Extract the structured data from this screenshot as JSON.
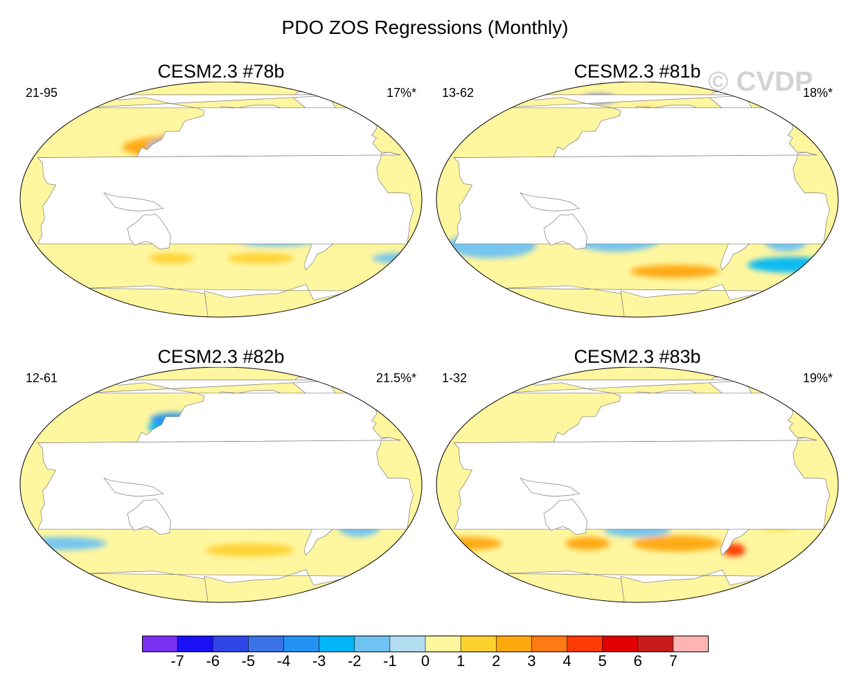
{
  "title": "PDO ZOS Regressions (Monthly)",
  "watermark": "© CVDP",
  "panels": [
    {
      "title": "CESM2.3 #78b",
      "years": "21-95",
      "percent": "17%*",
      "pattern": "p78"
    },
    {
      "title": "CESM2.3 #81b",
      "years": "13-62",
      "percent": "18%*",
      "pattern": "p81"
    },
    {
      "title": "CESM2.3 #82b",
      "years": "12-61",
      "percent": "21.5%*",
      "pattern": "p82"
    },
    {
      "title": "CESM2.3 #83b",
      "years": "1-32",
      "percent": "19%*",
      "pattern": "p83"
    }
  ],
  "colorbar": {
    "labels": [
      "-7",
      "-6",
      "-5",
      "-4",
      "-3",
      "-2",
      "-1",
      "0",
      "1",
      "2",
      "3",
      "4",
      "5",
      "6",
      "7"
    ],
    "colors": [
      "#7b2ff0",
      "#1a10f5",
      "#2f45e6",
      "#3b72e8",
      "#2291f2",
      "#00b6f5",
      "#6fc3f2",
      "#b2ddf1",
      "#fff6a0",
      "#ffd12e",
      "#ffa70f",
      "#ff7a12",
      "#ff3a05",
      "#e20000",
      "#c81c1c",
      "#ffb3b3"
    ]
  },
  "palette": {
    "ocean_neutral": "#fff6a0",
    "land": "#ffffff",
    "coast": "#7a7a7a"
  }
}
